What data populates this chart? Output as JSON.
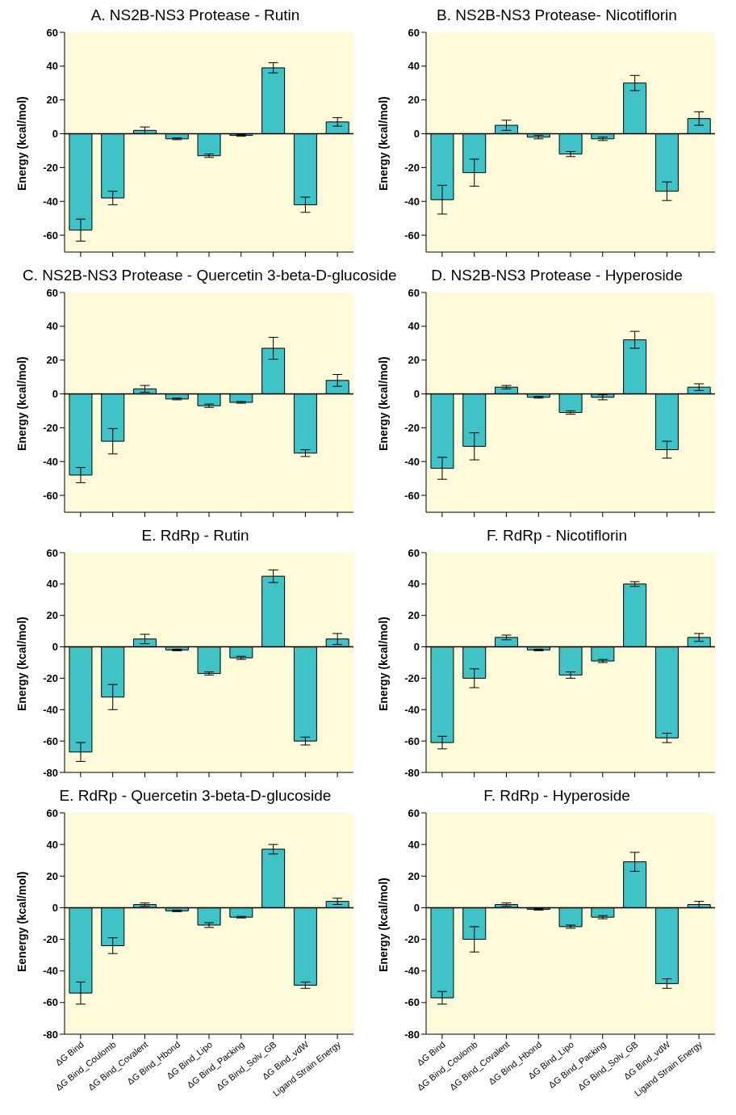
{
  "chart_data": [
    {
      "type": "bar",
      "title": "A. NS2B-NS3 Protease - Rutin",
      "ylabel": "Energy (kcal/mol)",
      "categories": [
        null,
        null,
        null,
        null,
        null,
        null,
        null,
        null,
        null
      ],
      "values": [
        -57,
        -38,
        2,
        -3,
        -13,
        -1,
        39,
        -42,
        7
      ],
      "errors": [
        6.5,
        4,
        2,
        0.5,
        1,
        0.5,
        3,
        4.5,
        2.5
      ],
      "color": "#3fc3c7",
      "ylim": [
        -70,
        60
      ],
      "yticks": [
        -60,
        -40,
        -20,
        0,
        20,
        40,
        60
      ],
      "ref_lines": [
        {
          "axis": "y",
          "value": 0
        }
      ],
      "tick_labels": "y"
    },
    {
      "type": "bar",
      "title": "B. NS2B-NS3 Protease- Nicotiflorin",
      "ylabel": "Energy (kcal/mol)",
      "categories": [
        null,
        null,
        null,
        null,
        null,
        null,
        null,
        null,
        null
      ],
      "values": [
        -39,
        -23,
        5,
        -2,
        -12,
        -3,
        30,
        -34,
        9
      ],
      "errors": [
        8.5,
        8,
        3,
        1,
        1.5,
        1,
        4.5,
        5.5,
        4
      ],
      "color": "#3fc3c7",
      "ylim": [
        -70,
        60
      ],
      "yticks": [
        -60,
        -40,
        -20,
        0,
        20,
        40,
        60
      ],
      "ref_lines": [
        {
          "axis": "y",
          "value": 0
        }
      ],
      "tick_labels": "y"
    },
    {
      "type": "bar",
      "title": "C. NS2B-NS3 Protease - Quercetin 3-beta-D-glucoside",
      "ylabel": "Energy (kcal/mol)",
      "categories": [
        null,
        null,
        null,
        null,
        null,
        null,
        null,
        null,
        null
      ],
      "values": [
        -48,
        -28,
        3,
        -3,
        -7,
        -5,
        27,
        -35,
        8
      ],
      "errors": [
        4.5,
        7.5,
        2,
        0.5,
        1,
        0.5,
        6.5,
        2,
        3.5
      ],
      "color": "#3fc3c7",
      "ylim": [
        -70,
        60
      ],
      "yticks": [
        -60,
        -40,
        -20,
        0,
        20,
        40,
        60
      ],
      "ref_lines": [
        {
          "axis": "y",
          "value": 0
        }
      ],
      "tick_labels": "y"
    },
    {
      "type": "bar",
      "title": "D. NS2B-NS3 Protease - Hyperoside",
      "ylabel": "Energy (kcal/mol)",
      "categories": [
        null,
        null,
        null,
        null,
        null,
        null,
        null,
        null,
        null
      ],
      "values": [
        -44,
        -31,
        4,
        -2,
        -11,
        -2,
        32,
        -33,
        4
      ],
      "errors": [
        6.5,
        8,
        1,
        0.5,
        1,
        1.5,
        5,
        5,
        2
      ],
      "color": "#3fc3c7",
      "ylim": [
        -70,
        60
      ],
      "yticks": [
        -60,
        -40,
        -20,
        0,
        20,
        40,
        60
      ],
      "ref_lines": [
        {
          "axis": "y",
          "value": 0
        }
      ],
      "tick_labels": "y"
    },
    {
      "type": "bar",
      "title": "E. RdRp - Rutin",
      "ylabel": "Energy (kcal/mol)",
      "categories": [
        null,
        null,
        null,
        null,
        null,
        null,
        null,
        null,
        null
      ],
      "values": [
        -67,
        -32,
        5,
        -2,
        -17,
        -7,
        45,
        -60,
        5
      ],
      "errors": [
        6,
        8,
        3,
        0.5,
        1,
        1,
        4,
        2.5,
        3.5
      ],
      "color": "#3fc3c7",
      "ylim": [
        -80,
        60
      ],
      "yticks": [
        -80,
        -60,
        -40,
        -20,
        0,
        20,
        40,
        60
      ],
      "ref_lines": [
        {
          "axis": "y",
          "value": 0
        }
      ],
      "tick_labels": "y"
    },
    {
      "type": "bar",
      "title": "F. RdRp - Nicotiflorin",
      "ylabel": "Energy (kcal/mol)",
      "categories": [
        null,
        null,
        null,
        null,
        null,
        null,
        null,
        null,
        null
      ],
      "values": [
        -61,
        -20,
        6,
        -2,
        -18,
        -9,
        40,
        -58,
        6
      ],
      "errors": [
        4,
        6,
        1.5,
        0.5,
        2,
        1,
        1.5,
        3,
        2.5
      ],
      "color": "#3fc3c7",
      "ylim": [
        -80,
        60
      ],
      "yticks": [
        -80,
        -60,
        -40,
        -20,
        0,
        20,
        40,
        60
      ],
      "ref_lines": [
        {
          "axis": "y",
          "value": 0
        }
      ],
      "tick_labels": "y"
    },
    {
      "type": "bar",
      "title": "E. RdRp - Quercetin 3-beta-D-glucoside",
      "ylabel": "Eenergy (kcal/mol)",
      "categories": [
        "ΔG Bind",
        "ΔG Bind_Coulomb",
        "ΔG Bind_Covalent",
        "ΔG Bind_Hbond",
        "ΔG Bind_Lipo",
        "ΔG Bind_Packing",
        "ΔG Bind_Solv_GB",
        "ΔG Bind_vdW",
        "Ligand Strain Energy"
      ],
      "values": [
        -54,
        -24,
        2,
        -2,
        -11,
        -6,
        37,
        -49,
        4
      ],
      "errors": [
        7,
        5,
        1,
        0.5,
        1.5,
        0.5,
        3,
        2,
        2
      ],
      "color": "#3fc3c7",
      "ylim": [
        -80,
        60
      ],
      "yticks": [
        -80,
        -60,
        -40,
        -20,
        0,
        20,
        40,
        60
      ],
      "ref_lines": [
        {
          "axis": "y",
          "value": 0
        }
      ]
    },
    {
      "type": "bar",
      "title": "F. RdRp - Hyperoside",
      "ylabel": "Energy (kcal/mol)",
      "categories": [
        "ΔG Bind",
        "ΔG Bind_Coulomb",
        "ΔG Bind_Covalent",
        "ΔG Bind_Hbond",
        "ΔG Bind_Lipo",
        "ΔG Bind_Packing",
        "ΔG Bind_Solv_GB",
        "ΔG Bind_vdW",
        "Ligand Strain Energy"
      ],
      "values": [
        -57,
        -20,
        2,
        -1,
        -12,
        -6,
        29,
        -48,
        2
      ],
      "errors": [
        4,
        8,
        1,
        0.5,
        1,
        1,
        6,
        3,
        2
      ],
      "color": "#3fc3c7",
      "ylim": [
        -80,
        60
      ],
      "yticks": [
        -80,
        -60,
        -40,
        -20,
        0,
        20,
        40,
        60
      ],
      "ref_lines": [
        {
          "axis": "y",
          "value": 0
        }
      ]
    }
  ]
}
